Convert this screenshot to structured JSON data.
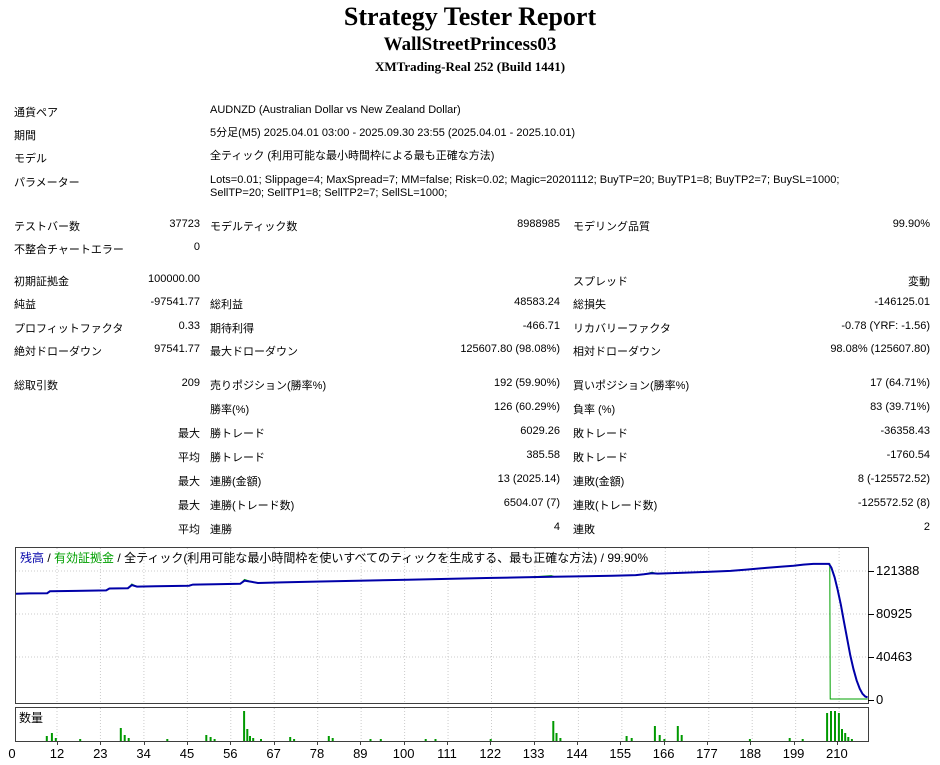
{
  "header": {
    "title": "Strategy Tester Report",
    "ea_name": "WallStreetPrincess03",
    "server_build": "XMTrading-Real 252 (Build 1441)"
  },
  "info": {
    "rows": [
      {
        "label": "通貨ペア",
        "value": "AUDNZD (Australian Dollar vs New Zealand Dollar)"
      },
      {
        "label": "期間",
        "value": "5分足(M5) 2025.04.01 03:00 - 2025.09.30 23:55 (2025.04.01 - 2025.10.01)"
      },
      {
        "label": "モデル",
        "value": "全ティック (利用可能な最小時間枠による最も正確な方法)"
      },
      {
        "label": "パラメーター",
        "value_lines": [
          "Lots=0.01; Slippage=4; MaxSpread=7; MM=false; Risk=0.02; Magic=20201112; BuyTP=20; BuyTP1=8; BuyTP2=7; BuySL=1000;",
          "SellTP=20; SellTP1=8; SellTP2=7; SellSL=1000;"
        ]
      }
    ]
  },
  "stats": {
    "sections": [
      {
        "rows": [
          {
            "c1l": "テストバー数",
            "c1v": "37723",
            "c2l": "モデルティック数",
            "c2v": "8988985",
            "c3l": "モデリング品質",
            "c3v": "99.90%"
          },
          {
            "c1l": "不整合チャートエラー",
            "c1v": "0"
          }
        ]
      },
      {
        "rows": [
          {
            "c1l": "初期証拠金",
            "c1v": "100000.00",
            "c3l": "スプレッド",
            "c3v": "変動"
          },
          {
            "c1l": "純益",
            "c1v": "-97541.77",
            "c2l": "総利益",
            "c2v": "48583.24",
            "c3l": "総損失",
            "c3v": "-146125.01"
          },
          {
            "c1l": "プロフィットファクタ",
            "c1v": "0.33",
            "c2l": "期待利得",
            "c2v": "-466.71",
            "c3l": "リカバリーファクタ",
            "c3v": "-0.78 (YRF: -1.56)"
          },
          {
            "c1l": "絶対ドローダウン",
            "c1v": "97541.77",
            "c2l": "最大ドローダウン",
            "c2v": "125607.80 (98.08%)",
            "c3l": "相対ドローダウン",
            "c3v": "98.08% (125607.80)"
          }
        ]
      },
      {
        "rows": [
          {
            "c1l": "総取引数",
            "c1v": "209",
            "c2l": "売りポジション(勝率%)",
            "c2v": "192 (59.90%)",
            "c3l": "買いポジション(勝率%)",
            "c3v": "17 (64.71%)"
          },
          {
            "c2l": "勝率(%)",
            "c2v": "126 (60.29%)",
            "c3l": "負率 (%)",
            "c3v": "83 (39.71%)"
          },
          {
            "c1v": "最大",
            "c2l": "勝トレード",
            "c2v": "6029.26",
            "c3l": "敗トレード",
            "c3v": "-36358.43"
          },
          {
            "c1v": "平均",
            "c2l": "勝トレード",
            "c2v": "385.58",
            "c3l": "敗トレード",
            "c3v": "-1760.54"
          },
          {
            "c1v": "最大",
            "c2l": "連勝(金額)",
            "c2v": "13 (2025.14)",
            "c3l": "連敗(金額)",
            "c3v": "8 (-125572.52)"
          },
          {
            "c1v": "最大",
            "c2l": "連勝(トレード数)",
            "c2v": "6504.07 (7)",
            "c3l": "連敗(トレード数)",
            "c3v": "-125572.52 (8)"
          },
          {
            "c1v": "平均",
            "c2l": "連勝",
            "c2v": "4",
            "c3l": "連敗",
            "c3v": "2"
          }
        ]
      }
    ]
  },
  "chart_data": {
    "type": "line",
    "legend": {
      "balance_label": "残高",
      "equity_label": "有効証拠金",
      "model_text": "全ティック(利用可能な最小時間枠を使いすべてのティックを生成する、最も正確な方法)",
      "quality": "99.90%",
      "separator": " / "
    },
    "y_ticks": [
      121388,
      80925,
      40463,
      0
    ],
    "x_ticks": [
      0,
      12,
      23,
      34,
      45,
      56,
      67,
      78,
      89,
      100,
      111,
      122,
      133,
      144,
      155,
      166,
      177,
      188,
      199,
      210
    ],
    "xlim": [
      0,
      218
    ],
    "ylim": [
      0,
      143000
    ],
    "colors": {
      "balance": "#0000A8",
      "equity": "#00A000",
      "volume": "#009900",
      "grid": "#CBCBCB"
    },
    "series": [
      {
        "name": "残高",
        "points": [
          [
            1.6,
            100000
          ],
          [
            5,
            100300
          ],
          [
            9.5,
            100500
          ],
          [
            10.2,
            102300
          ],
          [
            17,
            102700
          ],
          [
            24.5,
            103100
          ],
          [
            25.3,
            104900
          ],
          [
            30,
            105200
          ],
          [
            31,
            108100
          ],
          [
            32.3,
            106700
          ],
          [
            37,
            107000
          ],
          [
            45.5,
            107600
          ],
          [
            46.5,
            108600
          ],
          [
            52,
            108900
          ],
          [
            58.5,
            109300
          ],
          [
            59.6,
            112300
          ],
          [
            61.5,
            111100
          ],
          [
            63,
            110100
          ],
          [
            69,
            110700
          ],
          [
            79,
            111500
          ],
          [
            90,
            112400
          ],
          [
            101,
            113200
          ],
          [
            111,
            114000
          ],
          [
            121,
            114800
          ],
          [
            131,
            115500
          ],
          [
            138,
            115900
          ],
          [
            146,
            116500
          ],
          [
            153,
            117000
          ],
          [
            159,
            117500
          ],
          [
            161,
            118300
          ],
          [
            163,
            119300
          ],
          [
            164.5,
            118900
          ],
          [
            171,
            119700
          ],
          [
            177,
            120500
          ],
          [
            183,
            121500
          ],
          [
            187,
            122700
          ],
          [
            192,
            124300
          ],
          [
            196,
            125500
          ],
          [
            199,
            126400
          ],
          [
            201.5,
            127400
          ],
          [
            204,
            128065
          ],
          [
            208,
            128065
          ],
          [
            208.6,
            124500
          ],
          [
            209.4,
            115500
          ],
          [
            210.2,
            103500
          ],
          [
            211,
            89500
          ],
          [
            211.8,
            73500
          ],
          [
            212.6,
            57500
          ],
          [
            213.4,
            42000
          ],
          [
            214.2,
            29000
          ],
          [
            215,
            18500
          ],
          [
            215.8,
            10500
          ],
          [
            216.5,
            5800
          ],
          [
            217.2,
            3200
          ],
          [
            217.8,
            2500
          ]
        ]
      },
      {
        "name": "有効証拠金",
        "points": [
          [
            1.6,
            100000
          ],
          [
            5,
            100300
          ],
          [
            9.5,
            100500
          ],
          [
            10.2,
            102300
          ],
          [
            17,
            102700
          ],
          [
            24.5,
            103100
          ],
          [
            25.3,
            104900
          ],
          [
            30,
            105200
          ],
          [
            31,
            109200
          ],
          [
            32.3,
            106700
          ],
          [
            37,
            107000
          ],
          [
            45.5,
            107600
          ],
          [
            46.5,
            108600
          ],
          [
            52,
            108900
          ],
          [
            58.5,
            109300
          ],
          [
            59.6,
            113400
          ],
          [
            61.5,
            111100
          ],
          [
            63,
            110100
          ],
          [
            69,
            110700
          ],
          [
            79,
            111500
          ],
          [
            90,
            112400
          ],
          [
            101,
            113200
          ],
          [
            111,
            114000
          ],
          [
            121,
            114800
          ],
          [
            131,
            115500
          ],
          [
            137.5,
            117100
          ],
          [
            138.5,
            115900
          ],
          [
            146,
            116500
          ],
          [
            153,
            117000
          ],
          [
            159,
            117500
          ],
          [
            161,
            118300
          ],
          [
            163,
            120200
          ],
          [
            164.5,
            118900
          ],
          [
            171,
            119700
          ],
          [
            177,
            120500
          ],
          [
            183,
            121500
          ],
          [
            187,
            122700
          ],
          [
            192,
            124300
          ],
          [
            196,
            125500
          ],
          [
            199,
            126400
          ],
          [
            201.5,
            127400
          ],
          [
            204,
            128065
          ],
          [
            208.2,
            128065
          ],
          [
            208.3,
            900
          ],
          [
            217.8,
            900
          ]
        ]
      }
    ],
    "volume": {
      "label": "数量",
      "bar_max": 33,
      "bars": [
        [
          9.4,
          5
        ],
        [
          10.7,
          8
        ],
        [
          11.7,
          3
        ],
        [
          17.9,
          2
        ],
        [
          28.2,
          13
        ],
        [
          29.2,
          6
        ],
        [
          30.2,
          3
        ],
        [
          40,
          2
        ],
        [
          49.9,
          6
        ],
        [
          51,
          4
        ],
        [
          52,
          2
        ],
        [
          59.5,
          30
        ],
        [
          60.3,
          12
        ],
        [
          61,
          5
        ],
        [
          61.8,
          3
        ],
        [
          63.8,
          2
        ],
        [
          71.2,
          4
        ],
        [
          72.2,
          2
        ],
        [
          81,
          5
        ],
        [
          82,
          3
        ],
        [
          91.6,
          2
        ],
        [
          94.2,
          2
        ],
        [
          105.6,
          2
        ],
        [
          108.1,
          2
        ],
        [
          122.1,
          2
        ],
        [
          138,
          20
        ],
        [
          138.8,
          8
        ],
        [
          139.8,
          3
        ],
        [
          156.6,
          5
        ],
        [
          157.9,
          3
        ],
        [
          163.8,
          15
        ],
        [
          165,
          6
        ],
        [
          166.2,
          2
        ],
        [
          169.6,
          15
        ],
        [
          170.6,
          6
        ],
        [
          187.9,
          2
        ],
        [
          198,
          3
        ],
        [
          201.3,
          2
        ],
        [
          207.5,
          28
        ],
        [
          208.5,
          30
        ],
        [
          209.5,
          30
        ],
        [
          210.5,
          28
        ],
        [
          211.3,
          12
        ],
        [
          212.1,
          8
        ],
        [
          212.9,
          4
        ],
        [
          213.8,
          2
        ]
      ]
    }
  }
}
